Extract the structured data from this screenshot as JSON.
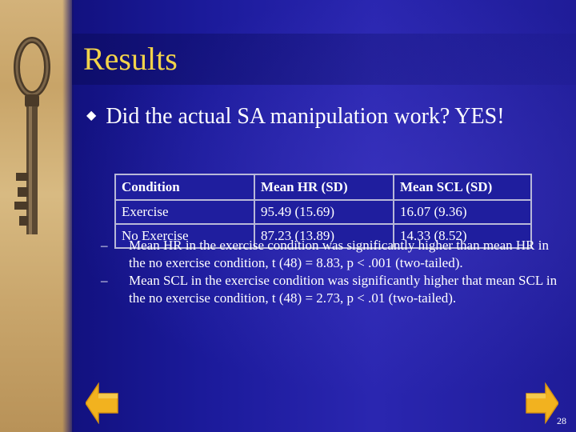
{
  "slide": {
    "title": "Results",
    "bullet_glyph": "◆",
    "bullet": "Did the actual SA manipulation work? YES!",
    "table": {
      "headers": [
        "Condition",
        "Mean HR (SD)",
        "Mean SCL (SD)"
      ],
      "rows": [
        [
          "Exercise",
          "95.49 (15.69)",
          "16.07 (9.36)"
        ],
        [
          "No Exercise",
          "87.23 (13.89)",
          "14.33 (8.52)"
        ]
      ]
    },
    "sub_bullets": [
      {
        "dash": "–",
        "text": "Mean HR in the exercise condition was significantly higher than mean HR in the no exercise condition, t (48) = 8.83, p < .001 (two-tailed)."
      },
      {
        "dash": "–",
        "text": "Mean SCL in the exercise condition was significantly higher that mean SCL in the no exercise condition, t (48) = 2.73, p < .01 (two-tailed)."
      }
    ],
    "page_number": "28",
    "colors": {
      "title": "#f2d34a",
      "background": "#1e1c9a",
      "text": "#ffffff",
      "nav_button": "#f2b21f",
      "parchment": "#c8a468"
    },
    "icons": {
      "prev": "arrow-left-icon",
      "next": "arrow-right-icon",
      "key": "antique-key-image"
    }
  }
}
